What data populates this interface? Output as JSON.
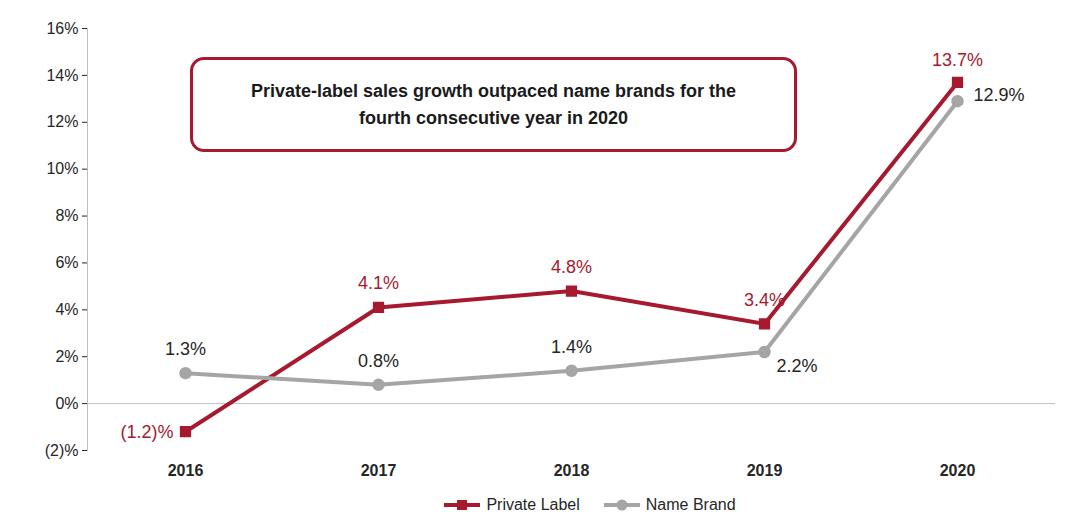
{
  "chart_data": {
    "type": "line",
    "annotation": "Private-label sales growth outpaced name brands for the fourth consecutive year in 2020",
    "categories": [
      "2016",
      "2017",
      "2018",
      "2019",
      "2020"
    ],
    "series": [
      {
        "name": "Private Label",
        "color": "#a6192e",
        "marker": "square",
        "values": [
          -1.2,
          4.1,
          4.8,
          3.4,
          13.7
        ],
        "value_labels": [
          "(1.2)%",
          "4.1%",
          "4.8%",
          "3.4%",
          "13.7%"
        ]
      },
      {
        "name": "Name Brand",
        "color": "#a5a5a5",
        "marker": "circle",
        "values": [
          1.3,
          0.8,
          1.4,
          2.2,
          12.9
        ],
        "value_labels": [
          "1.3%",
          "0.8%",
          "1.4%",
          "2.2%",
          "12.9%"
        ]
      }
    ],
    "ylim": [
      -2,
      16
    ],
    "yticks": [
      {
        "value": -2,
        "label": "(2)%"
      },
      {
        "value": 0,
        "label": "0%"
      },
      {
        "value": 2,
        "label": "2%"
      },
      {
        "value": 4,
        "label": "4%"
      },
      {
        "value": 6,
        "label": "6%"
      },
      {
        "value": 8,
        "label": "8%"
      },
      {
        "value": 10,
        "label": "10%"
      },
      {
        "value": 12,
        "label": "12%"
      },
      {
        "value": 14,
        "label": "14%"
      },
      {
        "value": 16,
        "label": "16%"
      }
    ],
    "grid": false,
    "data_labels": true,
    "legend": "bottom"
  }
}
